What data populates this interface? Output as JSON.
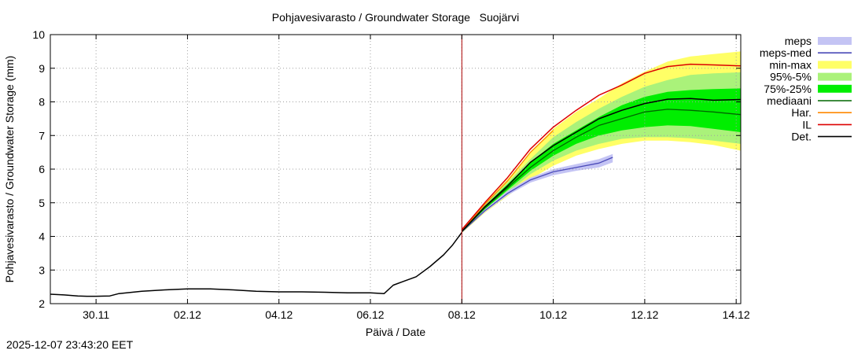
{
  "chart_data": {
    "type": "line",
    "title": "Pohjavesivarasto / Groundwater Storage   Suojärvi",
    "xlabel": "Päivä / Date",
    "ylabel": "Pohjavesivarasto / Groundwater Storage (mm)",
    "x_unit": "days since 29.11 00:00",
    "xlim": [
      0,
      15.1
    ],
    "ylim": [
      2,
      10
    ],
    "yticks": [
      2,
      3,
      4,
      5,
      6,
      7,
      8,
      9,
      10
    ],
    "xticks": [
      {
        "x": 1,
        "label": "30.11"
      },
      {
        "x": 3,
        "label": "02.12"
      },
      {
        "x": 5,
        "label": "04.12"
      },
      {
        "x": 7,
        "label": "06.12"
      },
      {
        "x": 9,
        "label": "08.12"
      },
      {
        "x": 11,
        "label": "10.12"
      },
      {
        "x": 13,
        "label": "12.12"
      },
      {
        "x": 15,
        "label": "14.12"
      }
    ],
    "grid": true,
    "forecast_start_x": 9.0,
    "legend_position": "right",
    "legend": [
      {
        "key": "meps",
        "label": "meps",
        "kind": "band",
        "color": "#c4c4f4"
      },
      {
        "key": "meps_med",
        "label": "meps-med",
        "kind": "line",
        "color": "#4a4ab8"
      },
      {
        "key": "minmax",
        "label": "min-max",
        "kind": "band",
        "color": "#ffff66"
      },
      {
        "key": "p95_5",
        "label": "95%-5%",
        "kind": "band",
        "color": "#aaf27a"
      },
      {
        "key": "p75_25",
        "label": "75%-25%",
        "kind": "band",
        "color": "#00ee00"
      },
      {
        "key": "median",
        "label": "mediaani",
        "kind": "line",
        "color": "#006600"
      },
      {
        "key": "har",
        "label": "Har.",
        "kind": "line",
        "color": "#ff8800"
      },
      {
        "key": "il",
        "label": "IL",
        "kind": "line",
        "color": "#dd0000"
      },
      {
        "key": "det",
        "label": "Det.",
        "kind": "line",
        "color": "#000000"
      }
    ],
    "series": {
      "det_hist": {
        "name": "Det.",
        "x": [
          0,
          0.3,
          0.6,
          0.8,
          1.0,
          1.3,
          1.5,
          2.0,
          2.5,
          3.0,
          3.5,
          4.0,
          4.5,
          5.0,
          5.5,
          6.0,
          6.5,
          7.0,
          7.3,
          7.5,
          7.7,
          8.0,
          8.3,
          8.6,
          8.8,
          9.0
        ],
        "y": [
          2.28,
          2.26,
          2.23,
          2.22,
          2.22,
          2.23,
          2.3,
          2.37,
          2.41,
          2.44,
          2.44,
          2.41,
          2.37,
          2.35,
          2.35,
          2.34,
          2.32,
          2.32,
          2.3,
          2.55,
          2.65,
          2.8,
          3.1,
          3.45,
          3.75,
          4.12
        ]
      },
      "minmax": {
        "name": "min-max",
        "x": [
          9.0,
          9.5,
          10.0,
          10.5,
          11.0,
          11.5,
          12.0,
          12.5,
          13.0,
          13.5,
          14.0,
          14.5,
          15.1
        ],
        "upper": [
          4.2,
          5.0,
          5.7,
          6.5,
          7.2,
          7.7,
          8.1,
          8.55,
          8.9,
          9.2,
          9.35,
          9.42,
          9.5
        ],
        "lower": [
          4.1,
          4.7,
          5.2,
          5.7,
          6.1,
          6.4,
          6.6,
          6.75,
          6.85,
          6.85,
          6.8,
          6.72,
          6.55
        ]
      },
      "p95_5": {
        "name": "95%-5%",
        "x": [
          9.0,
          9.5,
          10.0,
          10.5,
          11.0,
          11.5,
          12.0,
          12.5,
          13.0,
          13.5,
          14.0,
          14.5,
          15.1
        ],
        "upper": [
          4.18,
          4.95,
          5.6,
          6.3,
          6.95,
          7.4,
          7.8,
          8.15,
          8.45,
          8.65,
          8.8,
          8.85,
          8.88
        ],
        "lower": [
          4.12,
          4.75,
          5.3,
          5.85,
          6.25,
          6.55,
          6.75,
          6.9,
          6.95,
          6.95,
          6.92,
          6.85,
          6.75
        ]
      },
      "p75_25": {
        "name": "75%-25%",
        "x": [
          9.0,
          9.5,
          10.0,
          10.5,
          11.0,
          11.5,
          12.0,
          12.5,
          13.0,
          13.5,
          14.0,
          14.5,
          15.1
        ],
        "upper": [
          4.16,
          4.9,
          5.55,
          6.2,
          6.75,
          7.15,
          7.55,
          7.9,
          8.15,
          8.3,
          8.35,
          8.38,
          8.4
        ],
        "lower": [
          4.13,
          4.8,
          5.38,
          5.95,
          6.4,
          6.75,
          7.0,
          7.15,
          7.25,
          7.3,
          7.28,
          7.2,
          7.1
        ]
      },
      "meps": {
        "name": "meps",
        "x": [
          9.0,
          9.5,
          10.0,
          10.5,
          11.0,
          11.5,
          12.0,
          12.3
        ],
        "upper": [
          4.15,
          4.8,
          5.35,
          5.75,
          6.0,
          6.15,
          6.3,
          6.45
        ],
        "lower": [
          4.12,
          4.72,
          5.22,
          5.6,
          5.82,
          5.95,
          6.05,
          6.2
        ]
      },
      "meps_med": {
        "name": "meps-med",
        "x": [
          9.0,
          9.5,
          10.0,
          10.5,
          11.0,
          11.5,
          12.0,
          12.3
        ],
        "y": [
          4.13,
          4.76,
          5.28,
          5.68,
          5.92,
          6.05,
          6.18,
          6.35
        ]
      },
      "median": {
        "name": "mediaani",
        "x": [
          9.0,
          9.5,
          10.0,
          10.5,
          11.0,
          11.5,
          12.0,
          12.5,
          13.0,
          13.5,
          14.0,
          14.5,
          15.1
        ],
        "y": [
          4.14,
          4.85,
          5.45,
          6.05,
          6.55,
          6.95,
          7.3,
          7.5,
          7.7,
          7.78,
          7.75,
          7.7,
          7.62
        ]
      },
      "il": {
        "name": "IL",
        "x": [
          9.0,
          9.5,
          10.0,
          10.5,
          11.0,
          11.5,
          12.0,
          12.5,
          13.0,
          13.5,
          14.0,
          14.5,
          15.1
        ],
        "y": [
          4.2,
          5.0,
          5.75,
          6.6,
          7.25,
          7.75,
          8.2,
          8.5,
          8.85,
          9.05,
          9.12,
          9.1,
          9.07
        ]
      },
      "har": {
        "name": "Har.",
        "x": [
          9.0,
          9.5,
          10.0,
          10.5,
          11.0
        ],
        "y": [
          4.18,
          4.95,
          5.65,
          6.5,
          7.15
        ]
      },
      "det_fc": {
        "name": "Det.",
        "x": [
          9.0,
          9.5,
          10.0,
          10.5,
          11.0,
          11.5,
          12.0,
          12.5,
          13.0,
          13.5,
          14.0,
          14.5,
          15.1
        ],
        "y": [
          4.15,
          4.88,
          5.5,
          6.2,
          6.7,
          7.1,
          7.5,
          7.75,
          7.95,
          8.08,
          8.1,
          8.05,
          8.07
        ]
      }
    }
  },
  "footer": {
    "timestamp": "2025-12-07 23:43:20 EET"
  }
}
